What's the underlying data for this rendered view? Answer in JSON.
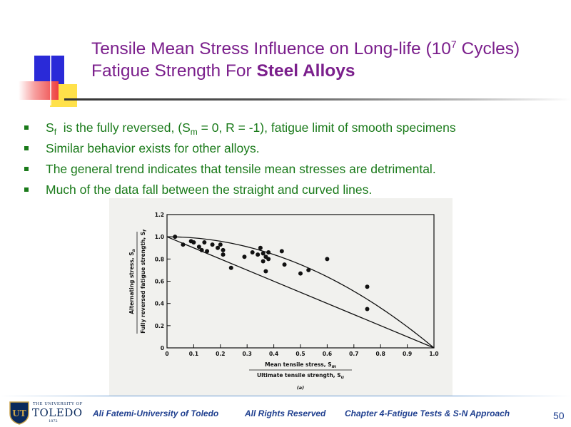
{
  "title": {
    "line1_text": "Tensile Mean Stress Influence on Long-life (10",
    "line1_sup": "7",
    "line1_end": " Cycles)",
    "line2_text": "Fatigue Strength For ",
    "line2_bold": "Steel Alloys"
  },
  "bullets": {
    "b1_a": "S",
    "b1_sub_f": "f",
    "b1_b": "  is the fully reversed, (S",
    "b1_sub_m": "m",
    "b1_c": " = 0, R = -1), fatigue limit of smooth specimens",
    "b2": "Similar behavior exists for other alloys.",
    "b3": "The general trend indicates that tensile mean stresses are detrimental.",
    "b4": "Much of the data fall between the straight and curved lines."
  },
  "chart_data": {
    "type": "scatter",
    "x_ticks": [
      "0",
      "0.1",
      "0.2",
      "0.3",
      "0.4",
      "0.5",
      "0.6",
      "0.7",
      "0.8",
      "0.9",
      "1.0"
    ],
    "y_ticks": [
      "0",
      "0.2",
      "0.4",
      "0.6",
      "0.8",
      "1.0",
      "1.2"
    ],
    "xlim": [
      0,
      1.0
    ],
    "ylim": [
      0,
      1.2
    ],
    "xlabel_top": "Mean tensile stress, S",
    "xlabel_top_sub": "m",
    "xlabel_bottom": "Ultimate tensile strength, S",
    "xlabel_bottom_sub": "u",
    "ylabel_outer": "Alternating stress, S",
    "ylabel_outer_sub": "a",
    "ylabel_inner": "Fully reversed fatigue strength, S",
    "ylabel_inner_sub": "f",
    "caption": "(a)",
    "points": [
      [
        0.03,
        1.0
      ],
      [
        0.06,
        0.93
      ],
      [
        0.09,
        0.96
      ],
      [
        0.1,
        0.95
      ],
      [
        0.12,
        0.91
      ],
      [
        0.13,
        0.88
      ],
      [
        0.14,
        0.95
      ],
      [
        0.15,
        0.87
      ],
      [
        0.17,
        0.93
      ],
      [
        0.19,
        0.9
      ],
      [
        0.2,
        0.93
      ],
      [
        0.21,
        0.88
      ],
      [
        0.21,
        0.84
      ],
      [
        0.24,
        0.72
      ],
      [
        0.29,
        0.82
      ],
      [
        0.32,
        0.86
      ],
      [
        0.34,
        0.84
      ],
      [
        0.35,
        0.9
      ],
      [
        0.36,
        0.85
      ],
      [
        0.36,
        0.78
      ],
      [
        0.37,
        0.82
      ],
      [
        0.37,
        0.69
      ],
      [
        0.38,
        0.86
      ],
      [
        0.38,
        0.8
      ],
      [
        0.43,
        0.87
      ],
      [
        0.44,
        0.75
      ],
      [
        0.5,
        0.67
      ],
      [
        0.53,
        0.7
      ],
      [
        0.6,
        0.8
      ],
      [
        0.75,
        0.55
      ],
      [
        0.75,
        0.35
      ]
    ],
    "lines": [
      {
        "kind": "straight",
        "from": [
          0,
          1.0
        ],
        "to": [
          1.0,
          0
        ]
      },
      {
        "kind": "parabola",
        "equation": "y = 1 - x^2"
      }
    ],
    "grid": false
  },
  "footer": {
    "logo_small": "THE UNIVERSITY OF",
    "logo_big": "TOLEDO",
    "logo_year": "1872",
    "logo_initials": "UT",
    "author": "Ali Fatemi-University of Toledo",
    "rights": "All Rights Reserved",
    "chapter": "Chapter 4-Fatigue Tests & S-N Approach",
    "page": "50"
  }
}
